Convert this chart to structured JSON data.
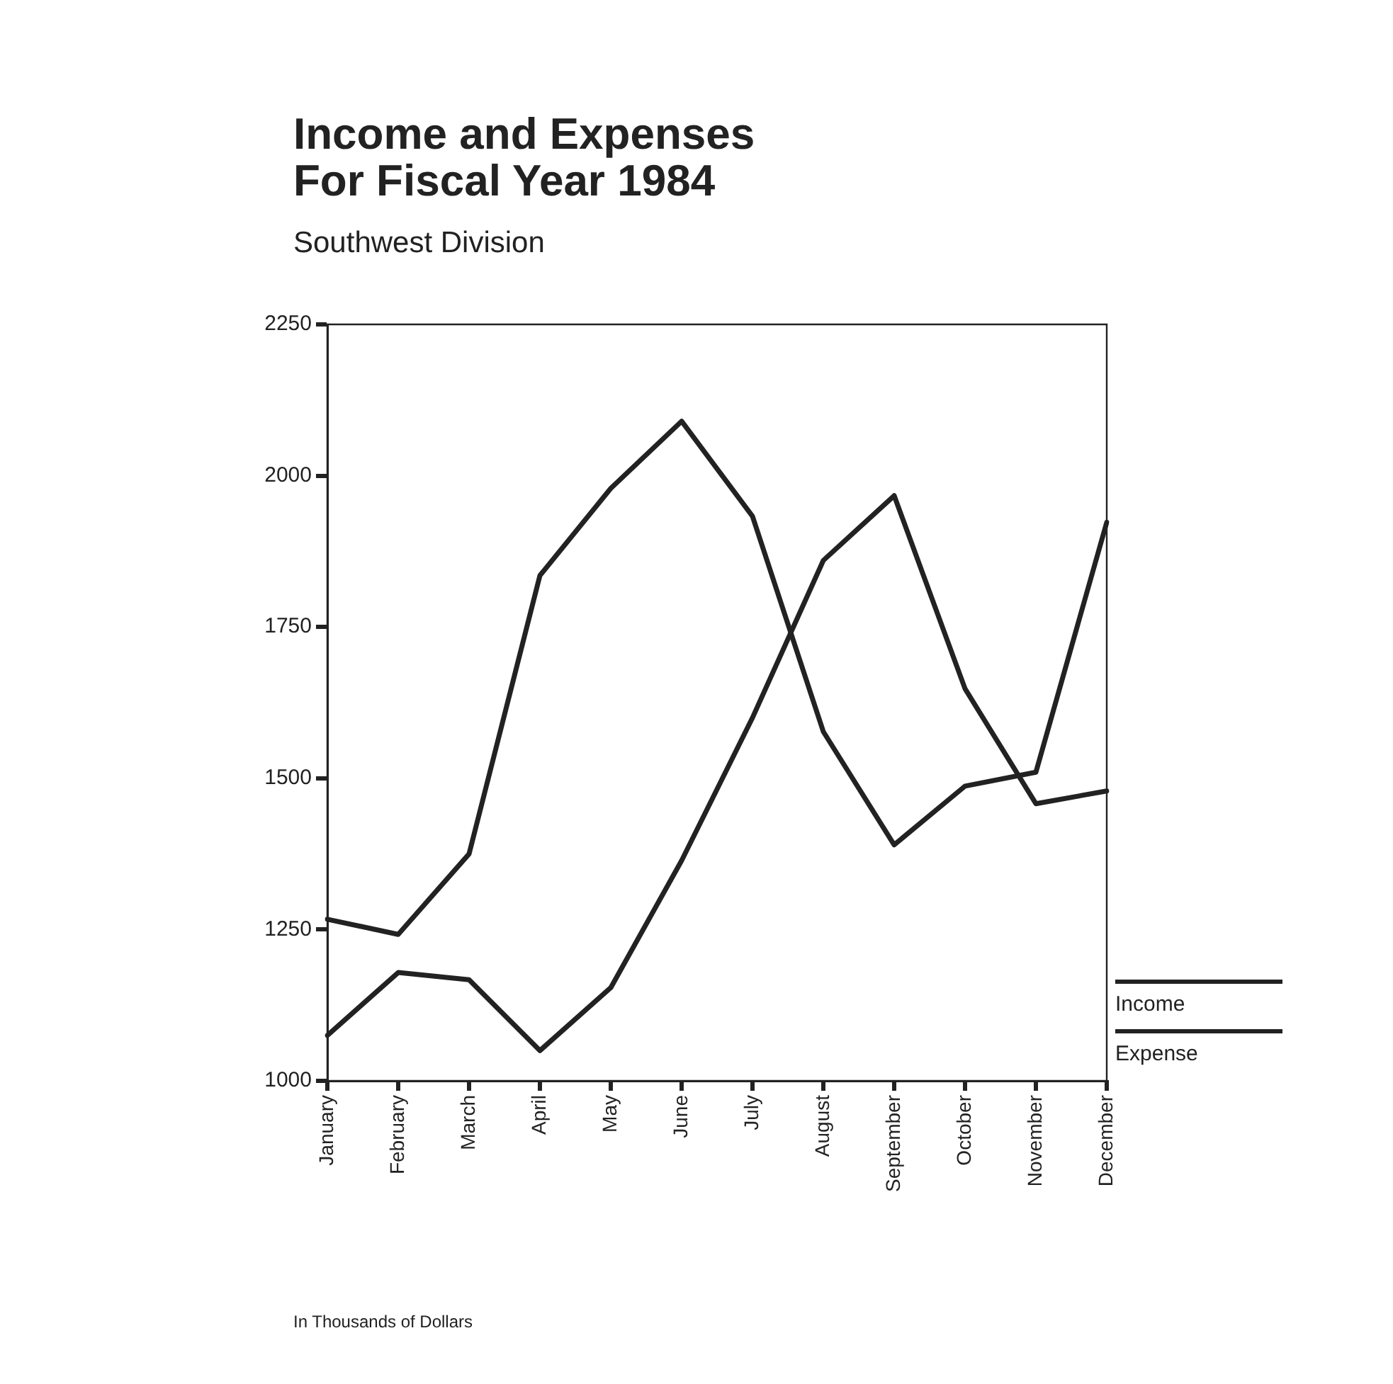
{
  "chart_data": {
    "type": "line",
    "title": "Income and Expenses\nFor Fiscal Year 1984",
    "subtitle": "Southwest Division",
    "categories": [
      "January",
      "February",
      "March",
      "April",
      "May",
      "June",
      "July",
      "August",
      "September",
      "October",
      "November",
      "December"
    ],
    "series": [
      {
        "name": "Income",
        "color": "#222222",
        "values": [
          1267,
          1242,
          1375,
          1835,
          1979,
          2090,
          1933,
          1577,
          1390,
          1487,
          1510,
          1923
        ]
      },
      {
        "name": "Expense",
        "color": "#222222",
        "values": [
          1075,
          1179,
          1167,
          1050,
          1154,
          1364,
          1600,
          1860,
          1967,
          1648,
          1458,
          1479
        ]
      }
    ],
    "ylim": [
      1000,
      2250
    ],
    "yticks": [
      1000,
      1250,
      1500,
      1750,
      2000,
      2250
    ],
    "grid": false,
    "legend": "bottom right",
    "marker": "none",
    "line_style": "solid",
    "annotations": [
      "In Thousands of Dollars"
    ]
  }
}
